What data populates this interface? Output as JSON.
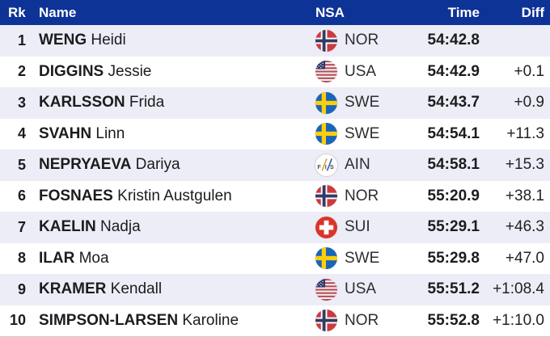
{
  "header": {
    "rank": "Rk",
    "name": "Name",
    "nsa": "NSA",
    "time": "Time",
    "diff": "Diff"
  },
  "rows": [
    {
      "rank": "1",
      "last_name": "WENG",
      "first_name": "Heidi",
      "nsa": "NOR",
      "flag": "nor",
      "time": "54:42.8",
      "diff": ""
    },
    {
      "rank": "2",
      "last_name": "DIGGINS",
      "first_name": "Jessie",
      "nsa": "USA",
      "flag": "usa",
      "time": "54:42.9",
      "diff": "+0.1"
    },
    {
      "rank": "3",
      "last_name": "KARLSSON",
      "first_name": "Frida",
      "nsa": "SWE",
      "flag": "swe",
      "time": "54:43.7",
      "diff": "+0.9"
    },
    {
      "rank": "4",
      "last_name": "SVAHN",
      "first_name": "Linn",
      "nsa": "SWE",
      "flag": "swe",
      "time": "54:54.1",
      "diff": "+11.3"
    },
    {
      "rank": "5",
      "last_name": "NEPRYAEVA",
      "first_name": "Dariya",
      "nsa": "AIN",
      "flag": "ain",
      "time": "54:58.1",
      "diff": "+15.3"
    },
    {
      "rank": "6",
      "last_name": "FOSNAES",
      "first_name": "Kristin Austgulen",
      "nsa": "NOR",
      "flag": "nor",
      "time": "55:20.9",
      "diff": "+38.1"
    },
    {
      "rank": "7",
      "last_name": "KAELIN",
      "first_name": "Nadja",
      "nsa": "SUI",
      "flag": "sui",
      "time": "55:29.1",
      "diff": "+46.3"
    },
    {
      "rank": "8",
      "last_name": "ILAR",
      "first_name": "Moa",
      "nsa": "SWE",
      "flag": "swe",
      "time": "55:29.8",
      "diff": "+47.0"
    },
    {
      "rank": "9",
      "last_name": "KRAMER",
      "first_name": "Kendall",
      "nsa": "USA",
      "flag": "usa",
      "time": "55:51.2",
      "diff": "+1:08.4"
    },
    {
      "rank": "10",
      "last_name": "SIMPSON-LARSEN",
      "first_name": "Karoline",
      "nsa": "NOR",
      "flag": "nor",
      "time": "55:52.8",
      "diff": "+1:10.0"
    }
  ],
  "colors": {
    "header_bg": "#0e3397",
    "header_text": "#ffffff",
    "row_alt_bg": "#ecedf6",
    "row_bg": "#ffffff",
    "text": "#1c1c1e",
    "nor_red": "#cc3a41",
    "nor_blue": "#2f3c63",
    "swe_blue": "#1a64ba",
    "swe_yellow": "#fdcf08",
    "sui_red": "#da342a",
    "usa_red": "#b64a52",
    "usa_blue": "#35386b",
    "ain_gold": "#d9a53c",
    "ain_blue": "#3b5fae"
  }
}
